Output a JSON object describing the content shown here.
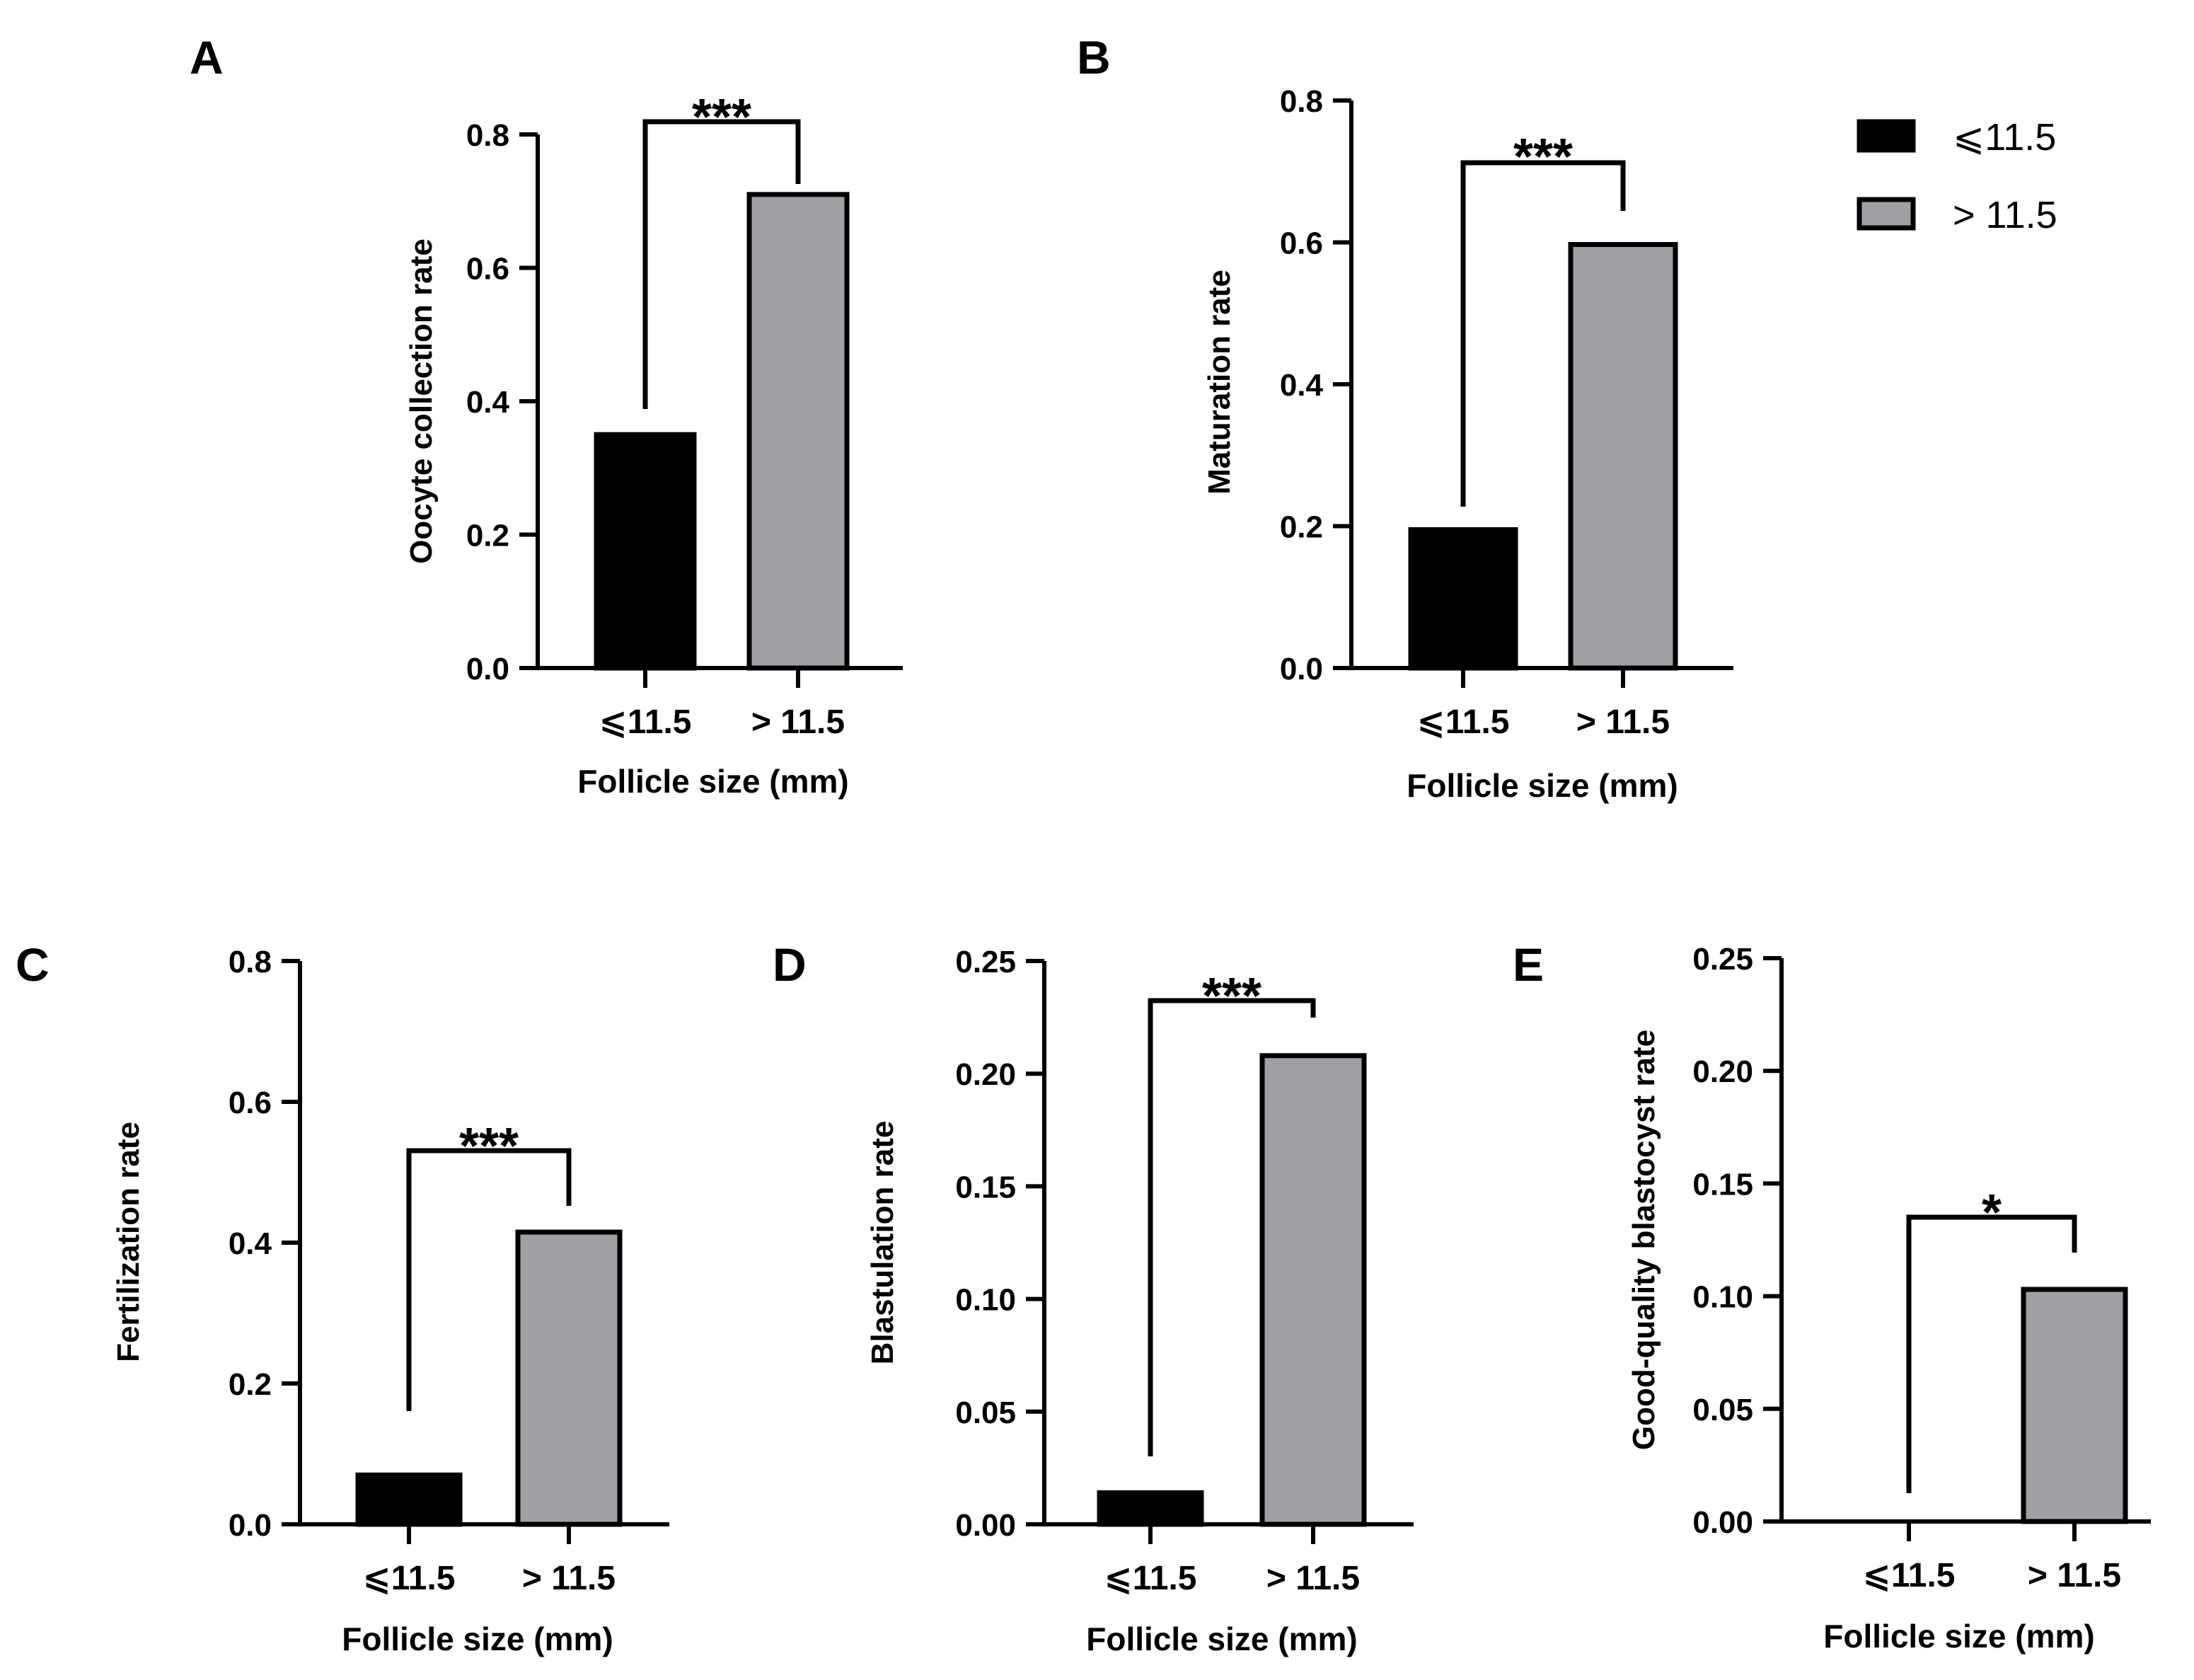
{
  "colors": {
    "group1_fill": "#000000",
    "group2_fill": "#a0a0a4",
    "stroke": "#000000"
  },
  "legend": {
    "items": [
      {
        "label": "⩽11.5",
        "color": "#000000"
      },
      {
        "label": "> 11.5",
        "color": "#a0a0a4"
      }
    ],
    "placement": "top-right"
  },
  "chart_data": [
    {
      "panel": "A",
      "type": "bar",
      "title": "",
      "categories": [
        "⩽11.5",
        "> 11.5"
      ],
      "values": [
        0.35,
        0.71
      ],
      "xlabel": "Follicle size (mm)",
      "ylabel": "Oocyte collection rate",
      "ylim": [
        0,
        0.8
      ],
      "yticks": [
        "0.0",
        "0.2",
        "0.4",
        "0.6",
        "0.8"
      ],
      "significance": "***"
    },
    {
      "panel": "B",
      "type": "bar",
      "title": "",
      "categories": [
        "⩽11.5",
        "> 11.5"
      ],
      "values": [
        0.195,
        0.597
      ],
      "xlabel": "Follicle size (mm)",
      "ylabel": "Maturation rate",
      "ylim": [
        0,
        0.8
      ],
      "yticks": [
        "0.0",
        "0.2",
        "0.4",
        "0.6",
        "0.8"
      ],
      "significance": "***"
    },
    {
      "panel": "C",
      "type": "bar",
      "title": "",
      "categories": [
        "⩽11.5",
        "> 11.5"
      ],
      "values": [
        0.07,
        0.415
      ],
      "xlabel": "Follicle size (mm)",
      "ylabel": "Fertilization rate",
      "ylim": [
        0,
        0.8
      ],
      "yticks": [
        "0.0",
        "0.2",
        "0.4",
        "0.6",
        "0.8"
      ],
      "significance": "***"
    },
    {
      "panel": "D",
      "type": "bar",
      "title": "",
      "categories": [
        "⩽11.5",
        "> 11.5"
      ],
      "values": [
        0.014,
        0.208
      ],
      "xlabel": "Follicle size (mm)",
      "ylabel": "Blastulation rate",
      "ylim": [
        0,
        0.25
      ],
      "yticks": [
        "0.00",
        "0.05",
        "0.10",
        "0.15",
        "0.20",
        "0.25"
      ],
      "significance": "***"
    },
    {
      "panel": "E",
      "type": "bar",
      "title": "",
      "categories": [
        "⩽11.5",
        "> 11.5"
      ],
      "values": [
        0.0,
        0.103
      ],
      "xlabel": "Follicle size (mm)",
      "ylabel": "Good-quality blastocyst rate",
      "ylim": [
        0,
        0.25
      ],
      "yticks": [
        "0.00",
        "0.05",
        "0.10",
        "0.15",
        "0.20",
        "0.25"
      ],
      "significance": "*"
    }
  ]
}
